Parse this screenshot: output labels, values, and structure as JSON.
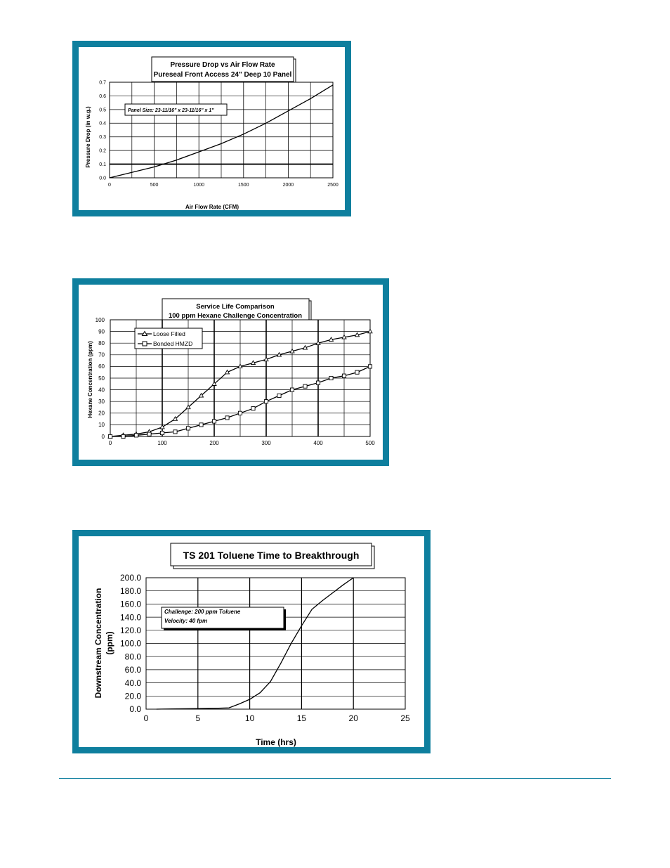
{
  "colors": {
    "frame": "#0e7f9e",
    "footer_rule": "#0e7f9e"
  },
  "chart_data": [
    {
      "type": "line",
      "title": "Pressure Drop vs Air Flow Rate",
      "subtitle": "Pureseal Front Access 24\" Deep 10 Panel",
      "xlabel": "Air Flow Rate (CFM)",
      "ylabel": "Pressure Drop (in w.g.)",
      "xlim": [
        0,
        2500
      ],
      "ylim": [
        0,
        0.7
      ],
      "x_ticks": [
        "0",
        "500",
        "1000",
        "1500",
        "2000",
        "2500"
      ],
      "y_ticks": [
        "0.0",
        "0.1",
        "0.2",
        "0.3",
        "0.4",
        "0.5",
        "0.6",
        "0.7"
      ],
      "annotation": "Panel Size: 23-11/16\" x 23-11/16\" x 1\"",
      "grid": true,
      "series": [
        {
          "x": [
            0,
            250,
            500,
            750,
            1000,
            1250,
            1500,
            1750,
            2000,
            2250,
            2500
          ],
          "y": [
            0.0,
            0.04,
            0.08,
            0.13,
            0.19,
            0.25,
            0.32,
            0.4,
            0.49,
            0.58,
            0.68
          ]
        }
      ]
    },
    {
      "type": "line",
      "title": "Service Life Comparison",
      "subtitle": "100 ppm Hexane Challenge Concentration",
      "xlabel": "",
      "ylabel": "Hexane Concentration (ppm)",
      "xlim": [
        0,
        500
      ],
      "ylim": [
        0,
        100
      ],
      "x_ticks": [
        "0",
        "100",
        "200",
        "300",
        "400",
        "500"
      ],
      "y_ticks": [
        "0",
        "10",
        "20",
        "30",
        "40",
        "50",
        "60",
        "70",
        "80",
        "90",
        "100"
      ],
      "legend": "top-left",
      "grid": true,
      "series": [
        {
          "name": "Loose Filled",
          "marker": "triangle",
          "x": [
            0,
            25,
            50,
            75,
            100,
            125,
            150,
            175,
            200,
            225,
            250,
            275,
            300,
            325,
            350,
            375,
            400,
            425,
            450,
            475,
            500
          ],
          "y": [
            0,
            1,
            2,
            4,
            8,
            15,
            25,
            35,
            45,
            55,
            60,
            63,
            66,
            70,
            73,
            76,
            80,
            83,
            85,
            87,
            90
          ]
        },
        {
          "name": "Bonded HMZD",
          "marker": "square",
          "x": [
            0,
            25,
            50,
            75,
            100,
            125,
            150,
            175,
            200,
            225,
            250,
            275,
            300,
            325,
            350,
            375,
            400,
            425,
            450,
            475,
            500
          ],
          "y": [
            0,
            0,
            1,
            2,
            3,
            4,
            7,
            10,
            13,
            16,
            20,
            24,
            30,
            35,
            40,
            43,
            46,
            50,
            52,
            55,
            60
          ]
        }
      ]
    },
    {
      "type": "line",
      "title": "TS 201 Toluene Time to Breakthrough",
      "xlabel": "Time (hrs)",
      "ylabel_line1": "Downstream Concentration",
      "ylabel_line2": "(ppm)",
      "xlim": [
        0,
        25
      ],
      "ylim": [
        0,
        200
      ],
      "x_ticks": [
        "0",
        "5",
        "10",
        "15",
        "20",
        "25"
      ],
      "y_ticks": [
        "0.0",
        "20.0",
        "40.0",
        "60.0",
        "80.0",
        "100.0",
        "120.0",
        "140.0",
        "160.0",
        "180.0",
        "200.0"
      ],
      "annotation_lines": [
        "Challenge: 200 ppm Toluene",
        "Velocity: 40 fpm"
      ],
      "grid": true,
      "series": [
        {
          "x": [
            1,
            3,
            5,
            7,
            8,
            9,
            10,
            11,
            12,
            13,
            14,
            15,
            16,
            17,
            18,
            19,
            20
          ],
          "y": [
            0,
            0.5,
            1,
            1.5,
            2,
            8,
            15,
            25,
            42,
            70,
            100,
            127,
            152,
            165,
            177,
            189,
            200
          ]
        }
      ]
    }
  ]
}
